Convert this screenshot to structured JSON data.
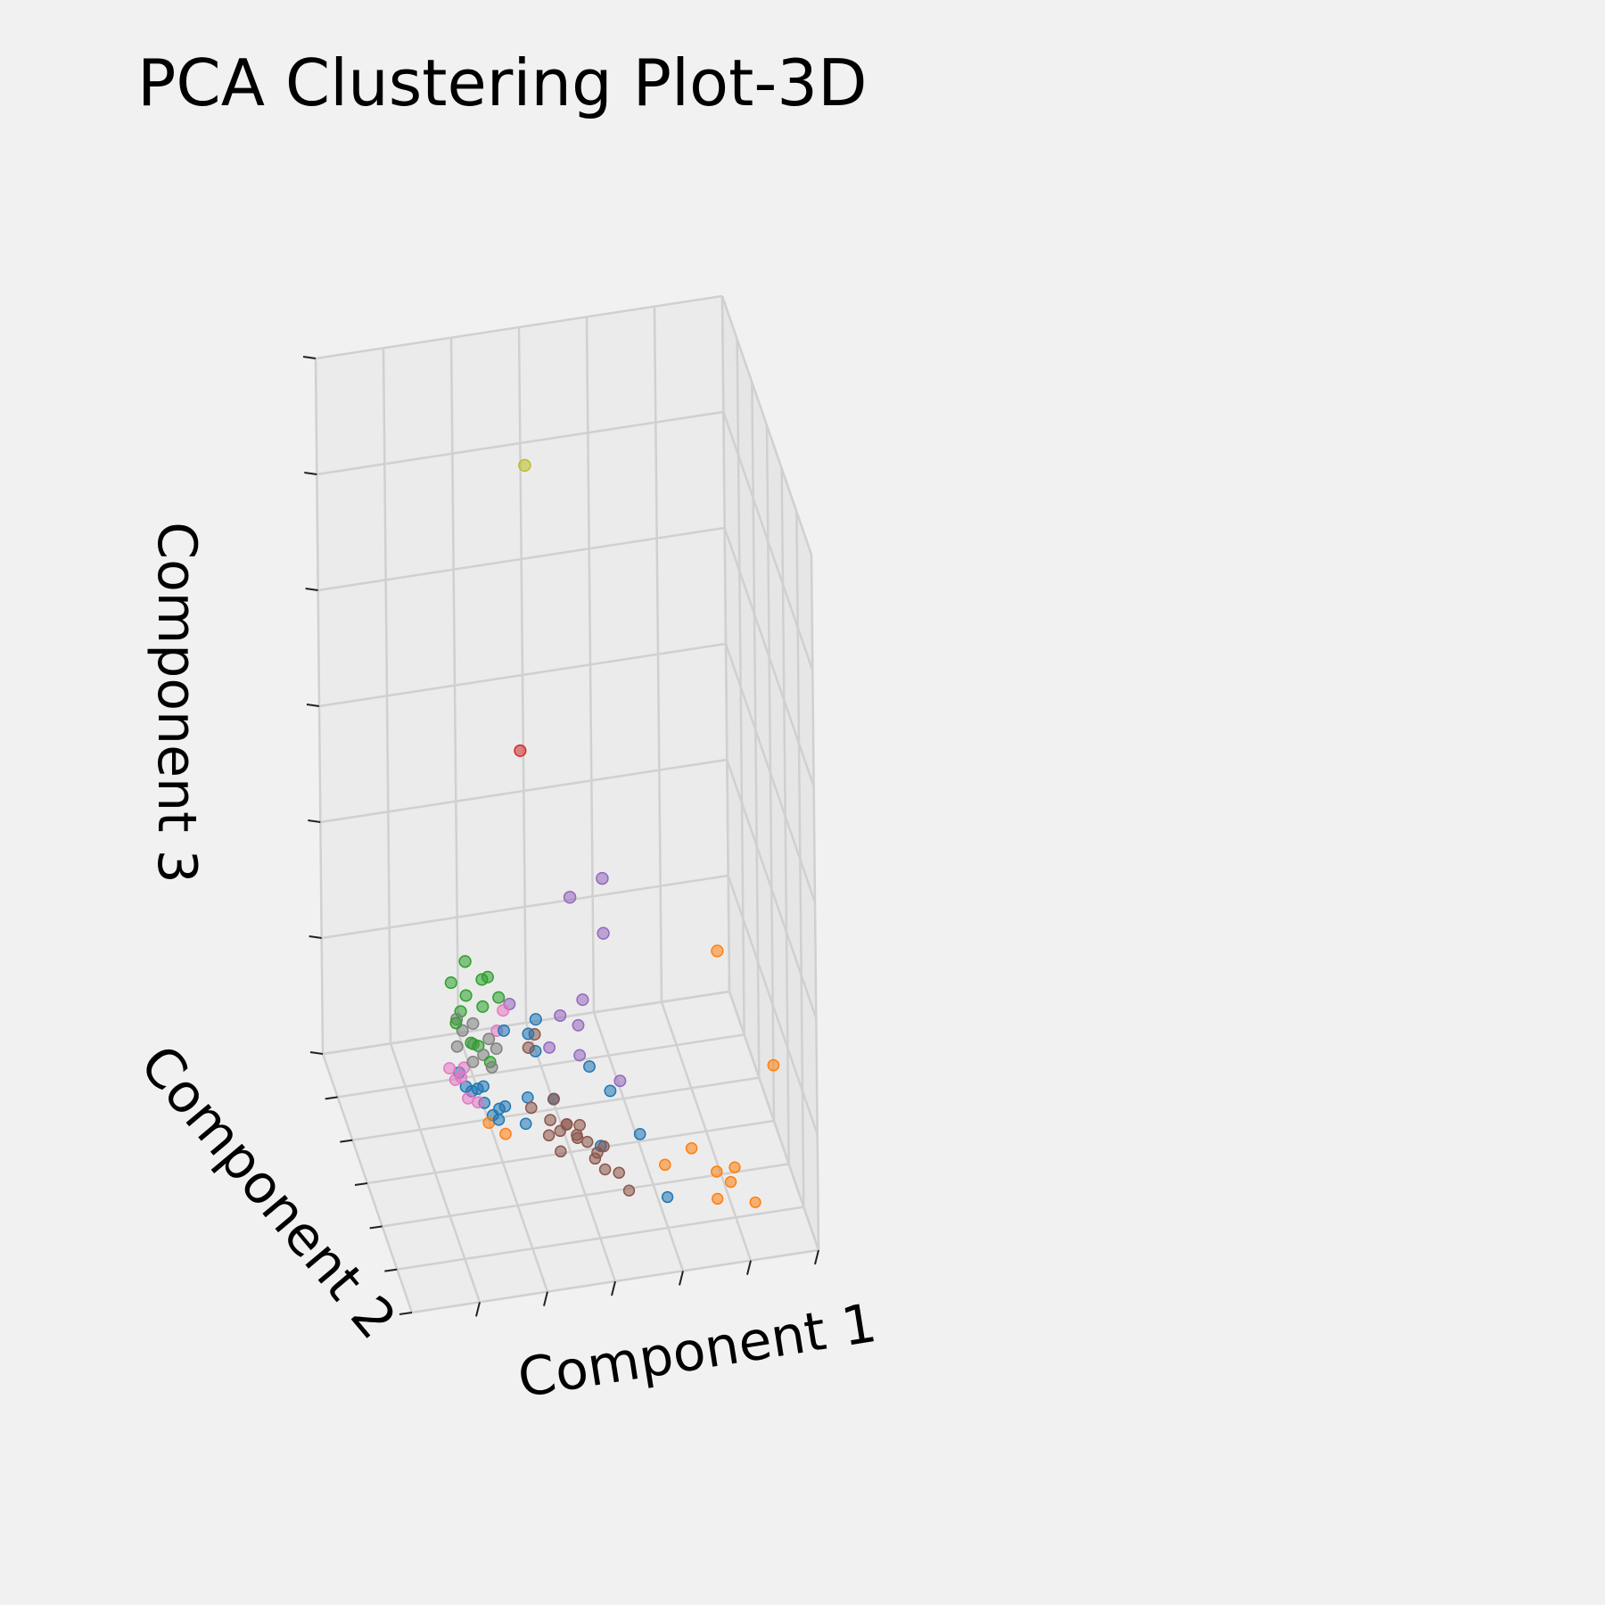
{
  "chart_data": {
    "type": "scatter",
    "projection": "3d",
    "title": "PCA Clustering Plot-3D",
    "xlabel": "Component 1",
    "ylabel": "Component 2",
    "zlabel": "Component 3",
    "grid": true,
    "xlim": [
      0,
      1
    ],
    "ylim": [
      0,
      1
    ],
    "zlim": [
      0,
      1
    ],
    "series": [
      {
        "color": "#1f77b4",
        "points": [
          [
            0.3,
            0.45,
            0.07
          ],
          [
            0.28,
            0.4,
            0.07
          ],
          [
            0.31,
            0.5,
            0.07
          ],
          [
            0.29,
            0.42,
            0.08
          ],
          [
            0.33,
            0.48,
            0.07
          ],
          [
            0.27,
            0.38,
            0.07
          ],
          [
            0.26,
            0.35,
            0.08
          ],
          [
            0.32,
            0.52,
            0.07
          ],
          [
            0.3,
            0.44,
            0.09
          ],
          [
            0.34,
            0.5,
            0.08
          ],
          [
            0.42,
            0.4,
            0.14
          ],
          [
            0.46,
            0.3,
            0.12
          ],
          [
            0.45,
            0.34,
            0.09
          ],
          [
            0.47,
            0.45,
            0.06
          ],
          [
            0.58,
            0.35,
            0.06
          ],
          [
            0.62,
            0.4,
            0.04
          ],
          [
            0.66,
            0.55,
            0.03
          ],
          [
            0.57,
            0.52,
            0.01
          ],
          [
            0.69,
            0.72,
            0.0
          ],
          [
            0.36,
            0.4,
            0.15
          ],
          [
            0.4,
            0.48,
            0.08
          ],
          [
            0.38,
            0.55,
            0.07
          ]
        ]
      },
      {
        "color": "#ff7f0e",
        "points": [
          [
            0.95,
            0.1,
            0.1
          ],
          [
            1.0,
            0.5,
            0.08
          ],
          [
            0.82,
            0.68,
            0.01
          ],
          [
            0.86,
            0.7,
            0.02
          ],
          [
            0.85,
            0.7,
            0.0
          ],
          [
            0.78,
            0.58,
            0.01
          ],
          [
            0.8,
            0.78,
            0.01
          ],
          [
            0.88,
            0.84,
            0.02
          ],
          [
            0.71,
            0.6,
            0.0
          ],
          [
            0.3,
            0.5,
            0.06
          ],
          [
            0.33,
            0.55,
            0.06
          ]
        ]
      },
      {
        "color": "#2ca02c",
        "points": [
          [
            0.35,
            0.2,
            0.15
          ],
          [
            0.36,
            0.22,
            0.16
          ],
          [
            0.3,
            0.25,
            0.15
          ],
          [
            0.28,
            0.28,
            0.14
          ],
          [
            0.27,
            0.22,
            0.16
          ],
          [
            0.33,
            0.3,
            0.15
          ],
          [
            0.38,
            0.25,
            0.14
          ],
          [
            0.32,
            0.15,
            0.16
          ],
          [
            0.26,
            0.32,
            0.14
          ],
          [
            0.29,
            0.35,
            0.12
          ],
          [
            0.33,
            0.38,
            0.1
          ],
          [
            0.31,
            0.34,
            0.11
          ]
        ]
      },
      {
        "color": "#d62728",
        "points": [
          [
            0.45,
            0.2,
            0.47
          ]
        ]
      },
      {
        "color": "#9467bd",
        "points": [
          [
            0.6,
            0.05,
            0.19
          ],
          [
            0.68,
            0.05,
            0.21
          ],
          [
            0.66,
            0.15,
            0.17
          ],
          [
            0.58,
            0.28,
            0.13
          ],
          [
            0.55,
            0.38,
            0.09
          ],
          [
            0.64,
            0.42,
            0.06
          ],
          [
            0.48,
            0.36,
            0.1
          ],
          [
            0.52,
            0.3,
            0.12
          ],
          [
            0.56,
            0.32,
            0.11
          ],
          [
            0.4,
            0.28,
            0.14
          ]
        ]
      },
      {
        "color": "#8c564b",
        "points": [
          [
            0.44,
            0.55,
            0.07
          ],
          [
            0.46,
            0.57,
            0.06
          ],
          [
            0.48,
            0.55,
            0.06
          ],
          [
            0.5,
            0.58,
            0.05
          ],
          [
            0.52,
            0.6,
            0.05
          ],
          [
            0.54,
            0.62,
            0.04
          ],
          [
            0.56,
            0.6,
            0.04
          ],
          [
            0.58,
            0.68,
            0.03
          ],
          [
            0.6,
            0.7,
            0.01
          ],
          [
            0.47,
            0.6,
            0.08
          ],
          [
            0.49,
            0.62,
            0.07
          ],
          [
            0.42,
            0.4,
            0.12
          ],
          [
            0.44,
            0.38,
            0.13
          ],
          [
            0.51,
            0.56,
            0.06
          ],
          [
            0.53,
            0.64,
            0.04
          ],
          [
            0.55,
            0.66,
            0.03
          ],
          [
            0.45,
            0.62,
            0.05
          ],
          [
            0.43,
            0.58,
            0.06
          ],
          [
            0.4,
            0.52,
            0.08
          ],
          [
            0.46,
            0.5,
            0.08
          ]
        ]
      },
      {
        "color": "#e377c2",
        "points": [
          [
            0.24,
            0.4,
            0.09
          ],
          [
            0.26,
            0.45,
            0.08
          ],
          [
            0.25,
            0.42,
            0.1
          ],
          [
            0.28,
            0.47,
            0.08
          ],
          [
            0.23,
            0.38,
            0.1
          ],
          [
            0.38,
            0.3,
            0.14
          ],
          [
            0.36,
            0.32,
            0.12
          ],
          [
            0.27,
            0.36,
            0.09
          ]
        ]
      },
      {
        "color": "#7f7f7f",
        "points": [
          [
            0.28,
            0.3,
            0.12
          ],
          [
            0.3,
            0.33,
            0.11
          ],
          [
            0.32,
            0.35,
            0.1
          ],
          [
            0.27,
            0.28,
            0.13
          ],
          [
            0.34,
            0.32,
            0.11
          ],
          [
            0.31,
            0.28,
            0.12
          ],
          [
            0.29,
            0.37,
            0.1
          ],
          [
            0.33,
            0.4,
            0.1
          ],
          [
            0.35,
            0.36,
            0.11
          ],
          [
            0.26,
            0.33,
            0.11
          ]
        ]
      },
      {
        "color": "#bcbd22",
        "points": [
          [
            0.5,
            0.05,
            0.82
          ]
        ]
      }
    ]
  }
}
